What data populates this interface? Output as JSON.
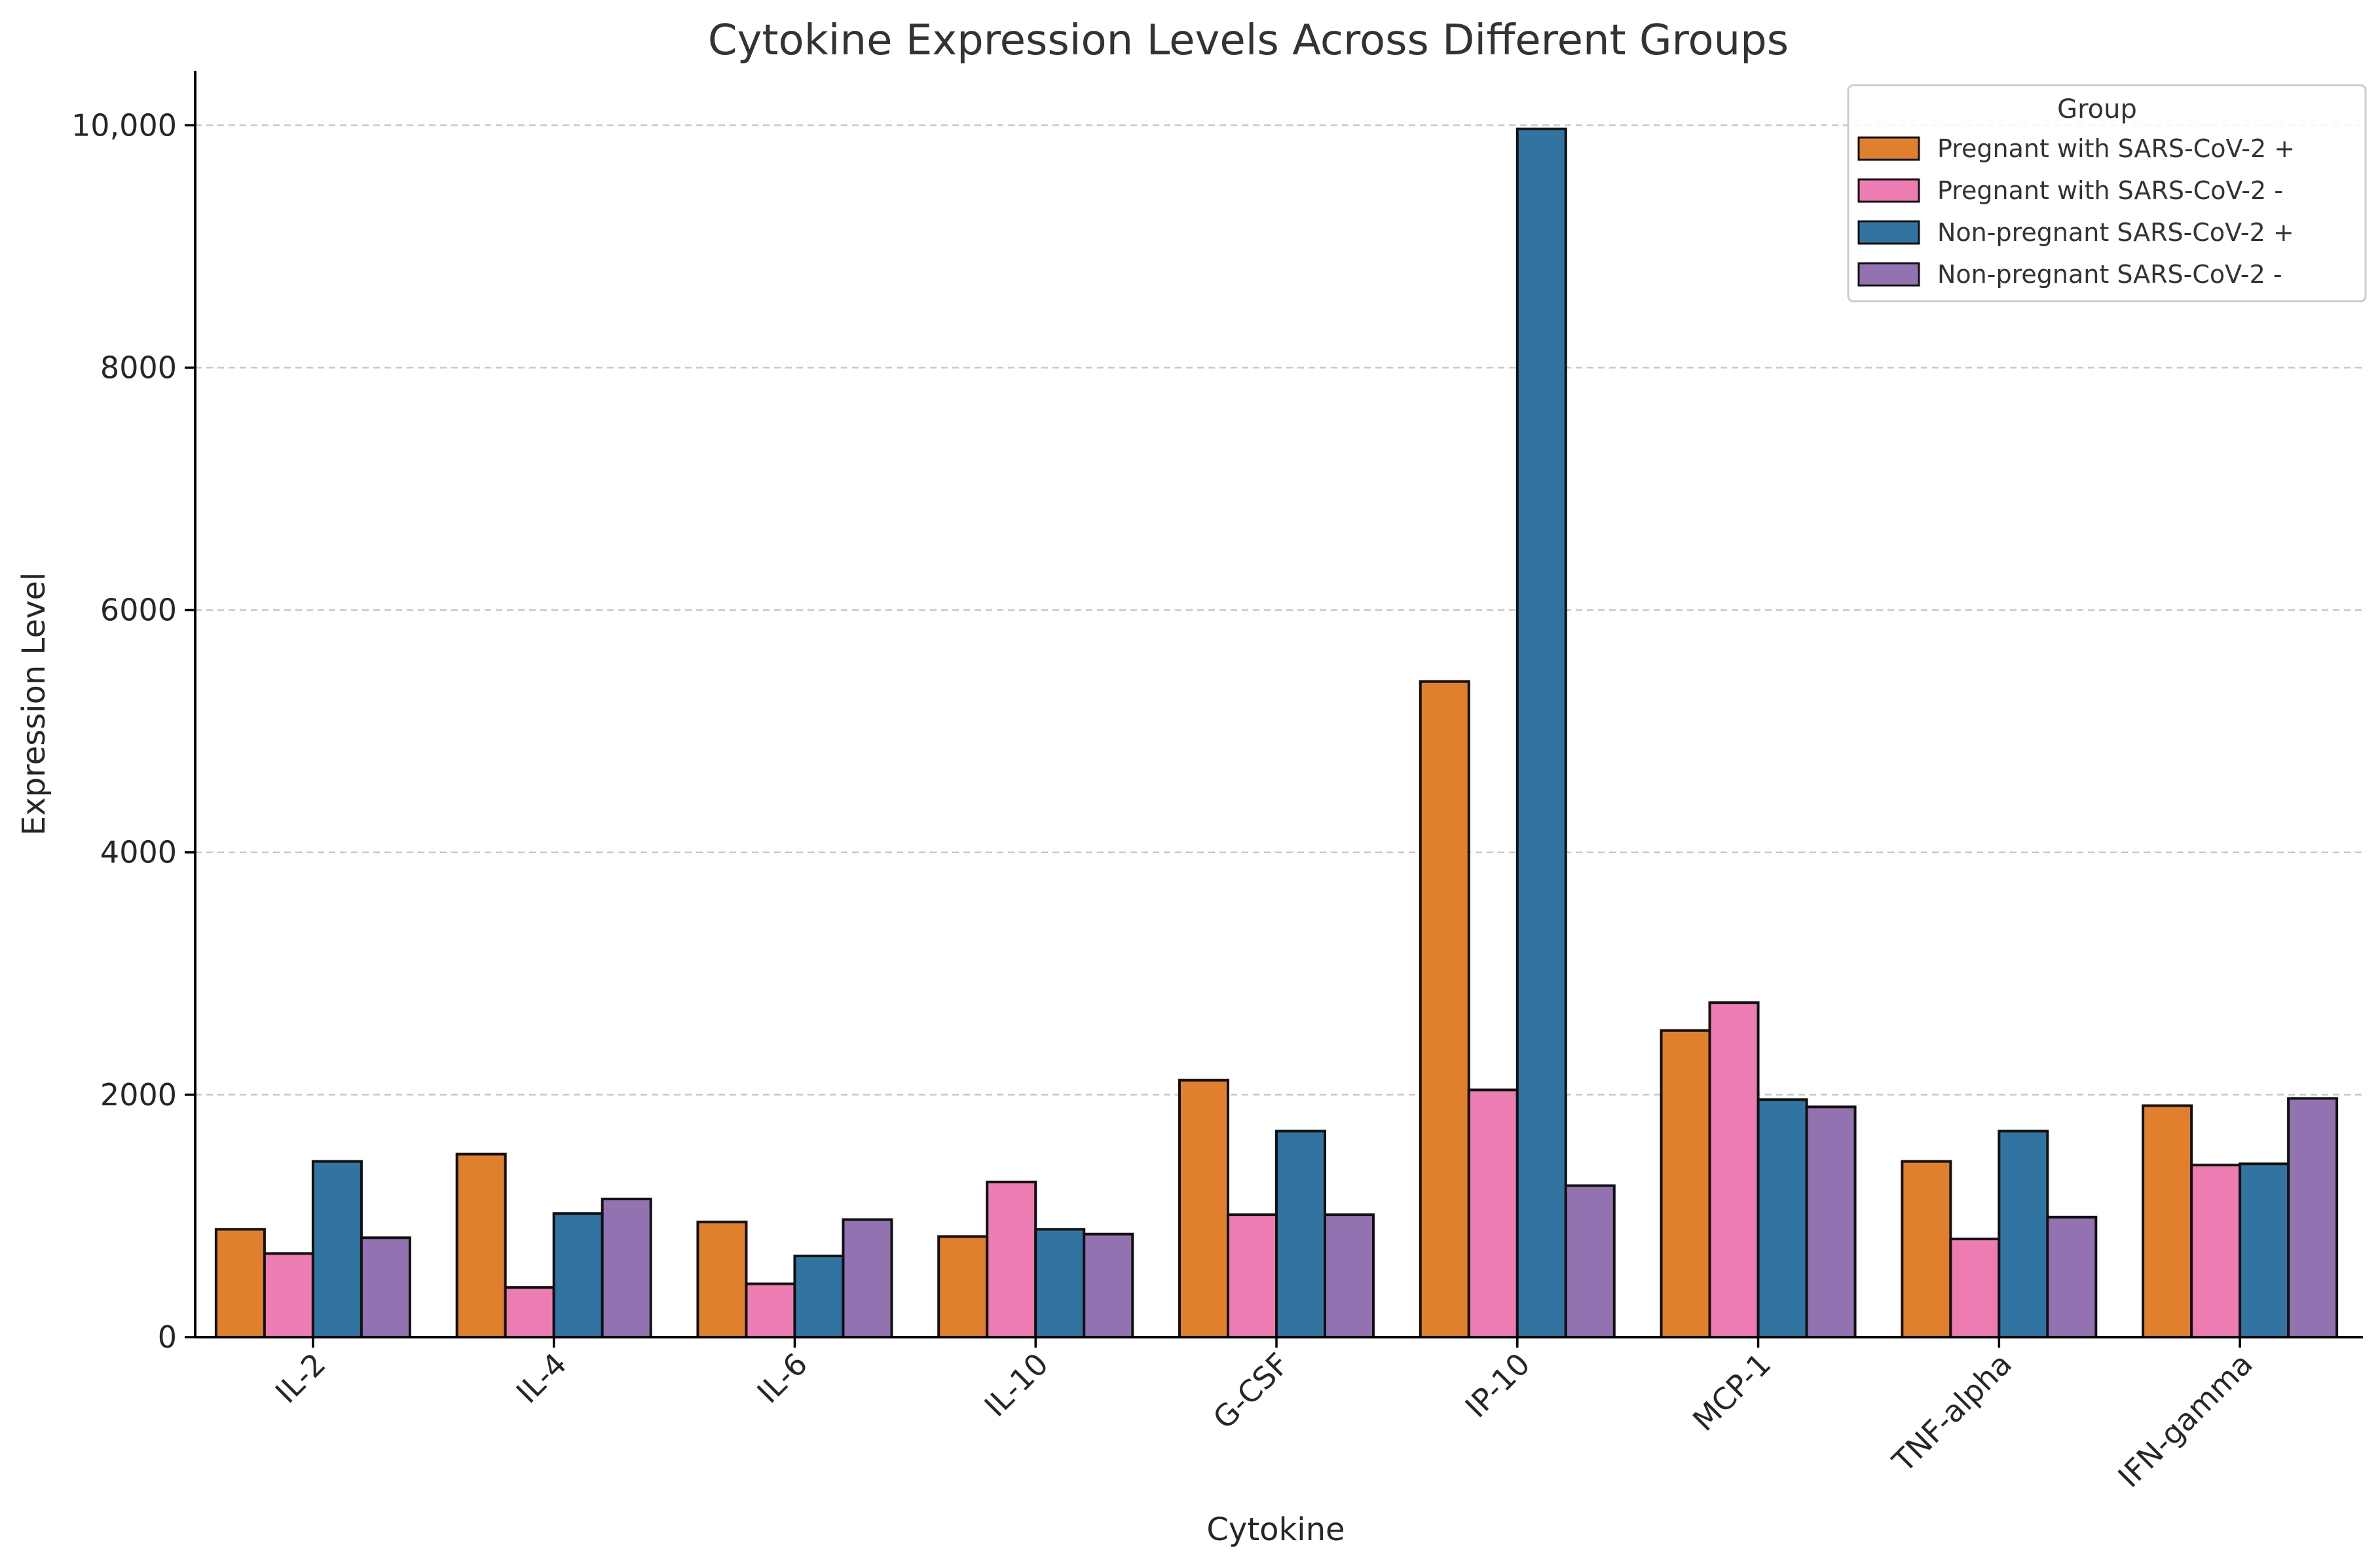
{
  "chart_data": {
    "type": "bar",
    "title": "Cytokine Expression Levels Across Different Groups",
    "xlabel": "Cytokine",
    "ylabel": "Expression Level",
    "ylim": [
      0,
      10450
    ],
    "yticks": [
      0,
      2000,
      4000,
      6000,
      8000,
      10000
    ],
    "ytick_labels": [
      "0",
      "2000",
      "4000",
      "6000",
      "8000",
      "10,000"
    ],
    "grid": true,
    "legend_title": "Group",
    "legend_position": "top-right",
    "categories": [
      "IL-2",
      "IL-4",
      "IL-6",
      "IL-10",
      "G-CSF",
      "IP-10",
      "MCP-1",
      "TNF-alpha",
      "IFN-gamma"
    ],
    "series": [
      {
        "name": "Pregnant with SARS-CoV-2 +",
        "color": "#e07f2c",
        "values": [
          890,
          1510,
          950,
          830,
          2120,
          5410,
          2530,
          1450,
          1910
        ]
      },
      {
        "name": "Pregnant with SARS-CoV-2 -",
        "color": "#ec7cb1",
        "values": [
          690,
          410,
          440,
          1280,
          1010,
          2040,
          2760,
          810,
          1420
        ]
      },
      {
        "name": "Non-pregnant SARS-CoV-2 +",
        "color": "#3274a1",
        "values": [
          1450,
          1020,
          670,
          890,
          1700,
          9970,
          1960,
          1700,
          1430
        ]
      },
      {
        "name": "Non-pregnant SARS-CoV-2 -",
        "color": "#9372b1",
        "values": [
          820,
          1140,
          970,
          850,
          1010,
          1250,
          1900,
          990,
          1970
        ]
      }
    ]
  }
}
